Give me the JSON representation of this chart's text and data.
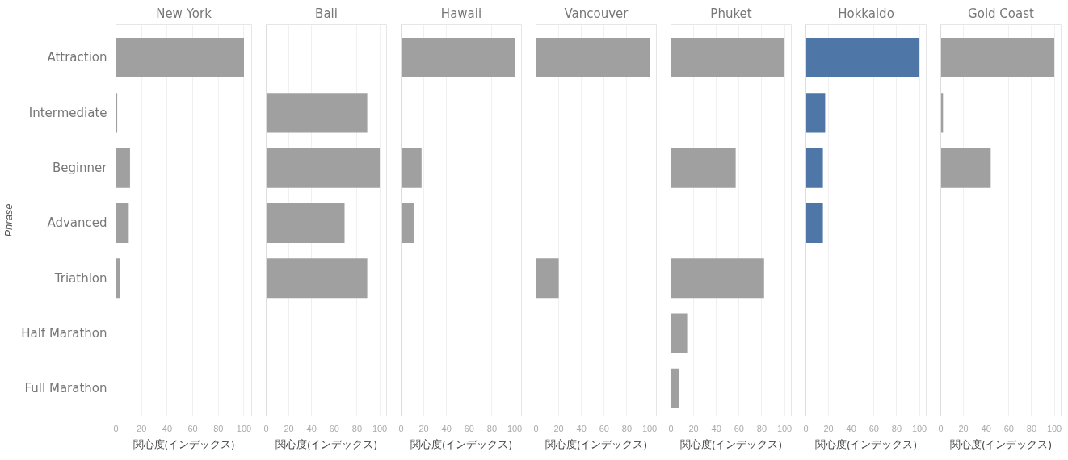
{
  "chart_data": [
    {
      "type": "bar",
      "orientation": "horizontal",
      "title": "New York",
      "ylabel": "Phrase",
      "xlabel": "関心度(インデックス)",
      "categories": [
        "Attraction",
        "Intermediate",
        "Beginner",
        "Advanced",
        "Triathlon",
        "Half Marathon",
        "Full Marathon"
      ],
      "values": [
        100,
        1,
        11,
        10,
        3,
        null,
        null
      ],
      "color": "#a0a0a0",
      "xlim": [
        0,
        106
      ],
      "xticks": [
        0,
        20,
        40,
        60,
        80,
        100
      ],
      "grid": "x"
    },
    {
      "type": "bar",
      "orientation": "horizontal",
      "title": "Bali",
      "xlabel": "関心度(インデックス)",
      "categories": [
        null,
        null,
        null,
        null,
        null,
        null,
        null
      ],
      "values": [
        null,
        89,
        100,
        69,
        89,
        null,
        null
      ],
      "color": "#a0a0a0",
      "xlim": [
        0,
        106
      ],
      "xticks": [
        0,
        20,
        40,
        60,
        80,
        100
      ],
      "grid": "x",
      "tick_labels": "x"
    },
    {
      "type": "bar",
      "orientation": "horizontal",
      "title": "Hawaii",
      "xlabel": "関心度(インデックス)",
      "categories": [
        null,
        null,
        null,
        null,
        null,
        null,
        null
      ],
      "values": [
        100,
        1,
        18,
        11,
        1,
        null,
        null
      ],
      "color": "#a0a0a0",
      "xlim": [
        0,
        106
      ],
      "xticks": [
        0,
        20,
        40,
        60,
        80,
        100
      ],
      "grid": "x",
      "tick_labels": "x"
    },
    {
      "type": "bar",
      "orientation": "horizontal",
      "title": "Vancouver",
      "xlabel": "関心度(インデックス)",
      "categories": [
        null,
        null,
        null,
        null,
        null,
        null,
        null
      ],
      "values": [
        100,
        null,
        null,
        null,
        20,
        null,
        null
      ],
      "color": "#a0a0a0",
      "xlim": [
        0,
        106
      ],
      "xticks": [
        0,
        20,
        40,
        60,
        80,
        100
      ],
      "grid": "x",
      "tick_labels": "x"
    },
    {
      "type": "bar",
      "orientation": "horizontal",
      "title": "Phuket",
      "xlabel": "関心度(インデックス)",
      "categories": [
        null,
        null,
        null,
        null,
        null,
        null,
        null
      ],
      "values": [
        100,
        null,
        57,
        null,
        82,
        15,
        7
      ],
      "color": "#a0a0a0",
      "xlim": [
        0,
        106
      ],
      "xticks": [
        0,
        20,
        40,
        60,
        80,
        100
      ],
      "grid": "x",
      "tick_labels": "x"
    },
    {
      "type": "bar",
      "orientation": "horizontal",
      "title": "Hokkaido",
      "xlabel": "関心度(インデックス)",
      "categories": [
        null,
        null,
        null,
        null,
        null,
        null,
        null
      ],
      "values": [
        100,
        17,
        15,
        15,
        null,
        null,
        null
      ],
      "color": "#4e76a6",
      "xlim": [
        0,
        106
      ],
      "xticks": [
        0,
        20,
        40,
        60,
        80,
        100
      ],
      "grid": "x",
      "tick_labels": "x"
    },
    {
      "type": "bar",
      "orientation": "horizontal",
      "title": "Gold Coast",
      "xlabel": "関心度(インデックス)",
      "categories": [
        null,
        null,
        null,
        null,
        null,
        null,
        null
      ],
      "values": [
        100,
        2,
        44,
        null,
        null,
        null,
        null
      ],
      "color": "#a0a0a0",
      "xlim": [
        0,
        106
      ],
      "xticks": [
        0,
        20,
        40,
        60,
        80,
        100
      ],
      "grid": "x",
      "tick_labels": "x"
    }
  ]
}
